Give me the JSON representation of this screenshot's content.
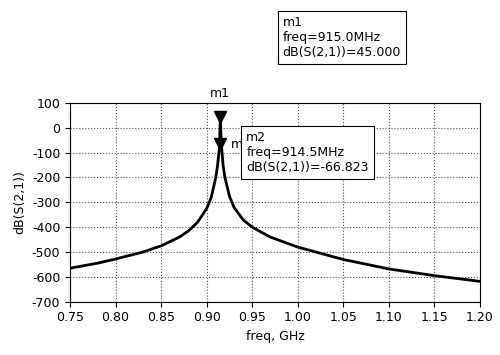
{
  "chart_data": {
    "type": "line",
    "x_label": "freq, GHz",
    "y_label": "dB(S(2,1))",
    "series": [
      {
        "name": "dB(S(2,1))",
        "color": "#000000",
        "line_style": "solid",
        "x": [
          0.75,
          0.78,
          0.8,
          0.83,
          0.85,
          0.87,
          0.88,
          0.89,
          0.9,
          0.905,
          0.91,
          0.912,
          0.914,
          0.915,
          0.916,
          0.918,
          0.92,
          0.925,
          0.93,
          0.94,
          0.95,
          0.97,
          1.0,
          1.05,
          1.1,
          1.15,
          1.2
        ],
        "values": [
          -565,
          -545,
          -528,
          -500,
          -475,
          -440,
          -415,
          -380,
          -325,
          -280,
          -200,
          -150,
          -80,
          45,
          -60,
          -150,
          -200,
          -275,
          -320,
          -370,
          -400,
          -440,
          -480,
          -530,
          -568,
          -595,
          -618
        ]
      }
    ],
    "markers": [
      {
        "label": "m1",
        "x": 0.915,
        "y": 45.0,
        "marker": "v",
        "color": "#000000",
        "text": [
          "freq=915.0MHz",
          "dB(S(2,1))=45.000"
        ]
      },
      {
        "label": "m2",
        "x": 0.9145,
        "y": -66.823,
        "marker": "v",
        "color": "#000000",
        "text": [
          "freq=914.5MHz",
          "dB(S(2,1))=-66.823"
        ]
      }
    ],
    "xlim": [
      0.75,
      1.2
    ],
    "xticks": [
      0.75,
      {
        "value": 0.8,
        "label": "0.80"
      },
      0.85,
      {
        "value": 0.9,
        "label": "0.90"
      },
      0.95,
      {
        "value": 1.0,
        "label": "1.00"
      },
      1.05,
      {
        "value": 1.1,
        "label": "1.10"
      },
      1.15,
      {
        "value": 1.2,
        "label": "1.20"
      }
    ],
    "ylim": [
      -700,
      100
    ],
    "yticks": [
      -700,
      -600,
      -500,
      -400,
      -300,
      -200,
      -100,
      0,
      100
    ],
    "grid": true
  }
}
